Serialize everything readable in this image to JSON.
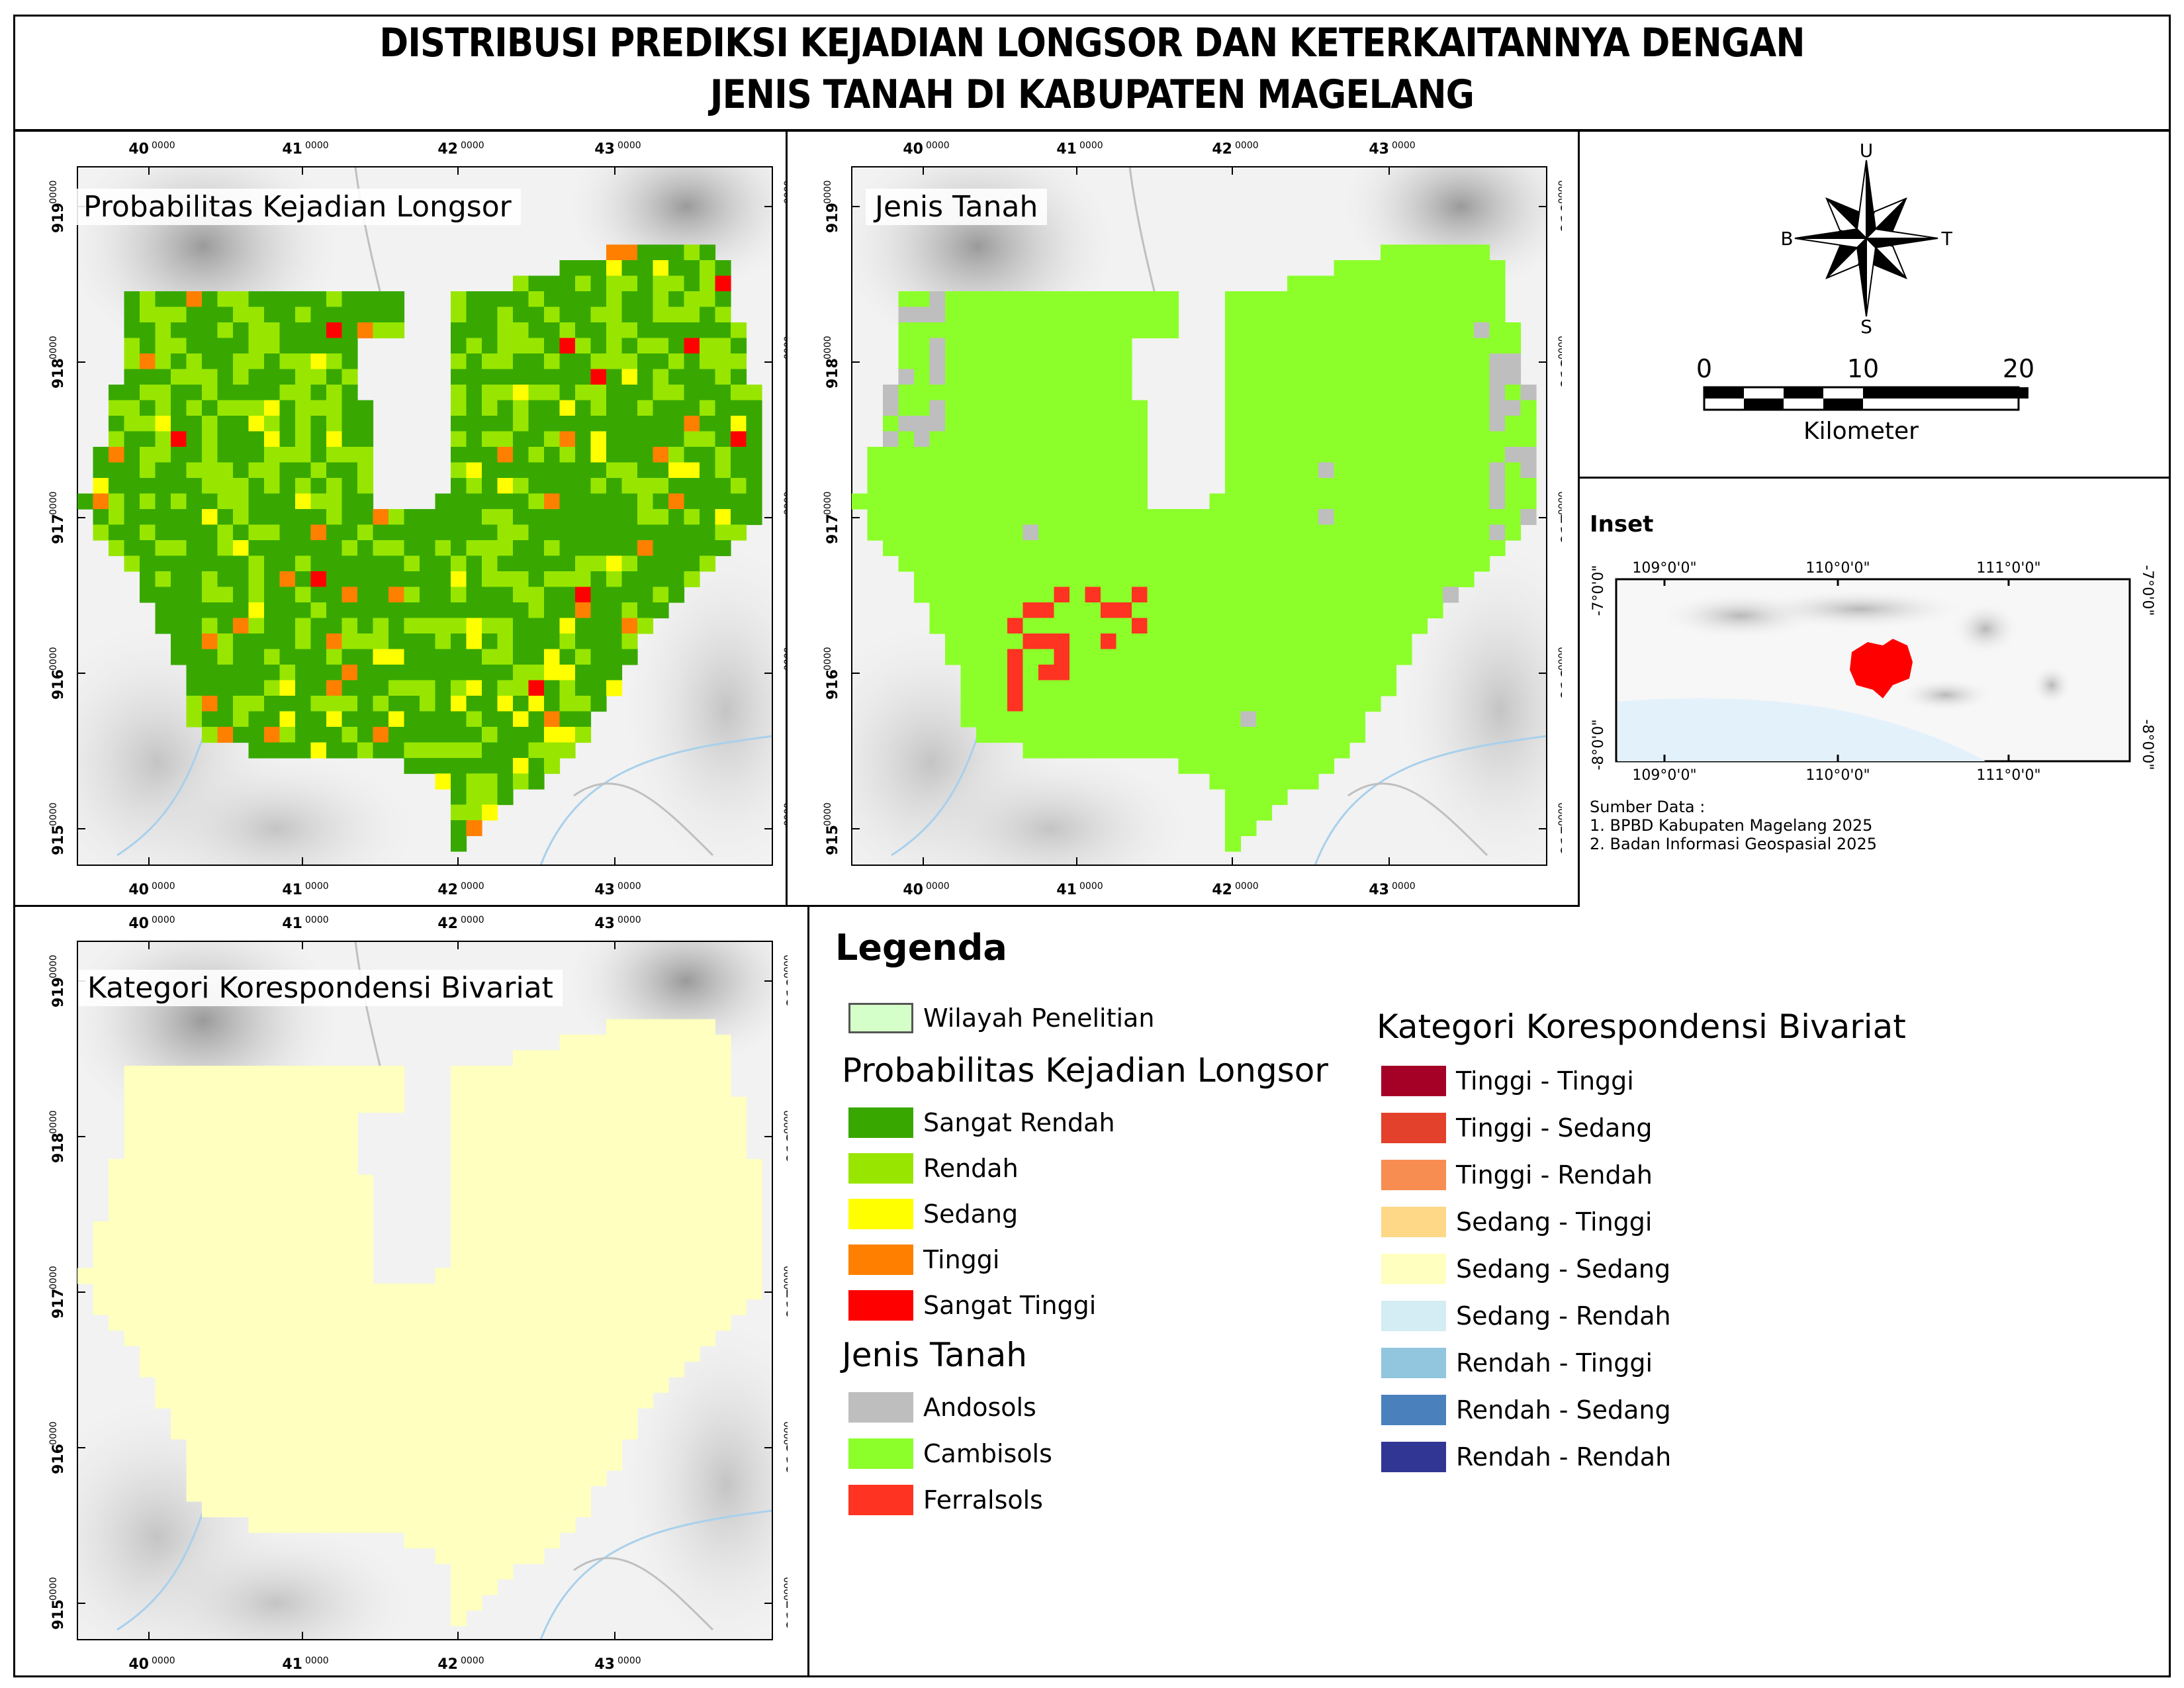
{
  "title": {
    "line1": "DISTRIBUSI PREDIKSI KEJADIAN LONGSOR DAN KETERKAITANNYA DENGAN",
    "line2": "JENIS TANAH DI KABUPATEN MAGELANG"
  },
  "grid": {
    "x_ticks": [
      {
        "main": "40",
        "sup": "0000"
      },
      {
        "main": "41",
        "sup": "0000"
      },
      {
        "main": "42",
        "sup": "0000"
      },
      {
        "main": "43",
        "sup": "0000"
      }
    ],
    "y_ticks": [
      {
        "main": "919",
        "sup": "0000"
      },
      {
        "main": "918",
        "sup": "0000"
      },
      {
        "main": "917",
        "sup": "0000"
      },
      {
        "main": "916",
        "sup": "0000"
      },
      {
        "main": "915",
        "sup": "0000"
      }
    ]
  },
  "panels": {
    "probabilitas": {
      "label": "Probabilitas Kejadian Longsor"
    },
    "jenis_tanah": {
      "label": "Jenis Tanah"
    },
    "bivariat": {
      "label": "Kategori Korespondensi Bivariat"
    }
  },
  "compass": {
    "north": "U",
    "south": "S",
    "east": "T",
    "west": "B"
  },
  "scalebar": {
    "labels": [
      "0",
      "10",
      "20"
    ],
    "unit": "Kilometer"
  },
  "inset": {
    "title": "Inset",
    "top_labels": [
      "109°0'0\"",
      "110°0'0\"",
      "111°0'0\""
    ],
    "bottom_labels": [
      "109°0'0\"",
      "110°0'0\"",
      "111°0'0\""
    ],
    "left_labels": [
      "-7°0'0\"",
      "-8°0'0\""
    ],
    "right_labels": [
      "-7°0'0\"",
      "-8°0'0\""
    ],
    "highlight_color": "#ff0000"
  },
  "sources": {
    "title": "Sumber Data :",
    "items": [
      "1. BPBD Kabupaten Magelang 2025",
      "2. Badan Informasi Geospasial 2025"
    ]
  },
  "legend": {
    "title": "Legenda",
    "study_area": {
      "label": "Wilayah Penelitian",
      "color": "#d5ffc8"
    },
    "probabilitas": {
      "heading": "Probabilitas Kejadian Longsor",
      "classes": [
        {
          "label": "Sangat Rendah",
          "color": "#38a800"
        },
        {
          "label": "Rendah",
          "color": "#98e600"
        },
        {
          "label": "Sedang",
          "color": "#ffff00"
        },
        {
          "label": "Tinggi",
          "color": "#ff8000"
        },
        {
          "label": "Sangat Tinggi",
          "color": "#ff0000"
        }
      ]
    },
    "jenis_tanah": {
      "heading": "Jenis Tanah",
      "classes": [
        {
          "label": "Andosols",
          "color": "#bebebe"
        },
        {
          "label": "Cambisols",
          "color": "#8cff2a"
        },
        {
          "label": "Ferralsols",
          "color": "#ff3322"
        }
      ]
    },
    "bivariat": {
      "heading": "Kategori Korespondensi Bivariat",
      "classes": [
        {
          "label": "Tinggi - Tinggi",
          "color": "#a50026"
        },
        {
          "label": "Tinggi - Sedang",
          "color": "#e3412b"
        },
        {
          "label": "Tinggi - Rendah",
          "color": "#f88d52"
        },
        {
          "label": "Sedang - Tinggi",
          "color": "#fed887"
        },
        {
          "label": "Sedang - Sedang",
          "color": "#ffffbf"
        },
        {
          "label": "Sedang - Rendah",
          "color": "#d4ecf3"
        },
        {
          "label": "Rendah - Tinggi",
          "color": "#92c5de"
        },
        {
          "label": "Rendah - Sedang",
          "color": "#4a81bd"
        },
        {
          "label": "Rendah - Rendah",
          "color": "#313694"
        }
      ]
    }
  }
}
